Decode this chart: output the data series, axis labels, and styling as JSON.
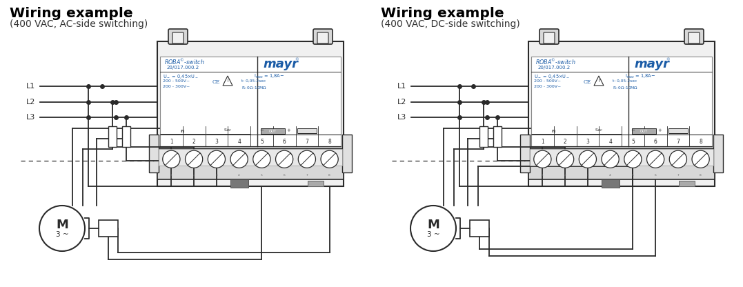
{
  "title_left": "Wiring example",
  "subtitle_left": "(400 VAC, AC-side switching)",
  "title_right": "Wiring example",
  "subtitle_right": "(400 VAC, DC-side switching)",
  "bg_color": "#ffffff",
  "line_color": "#2a2a2a",
  "blue_color": "#1a5ba6",
  "motor_label": "M",
  "motor_sublabel": "3 ~"
}
